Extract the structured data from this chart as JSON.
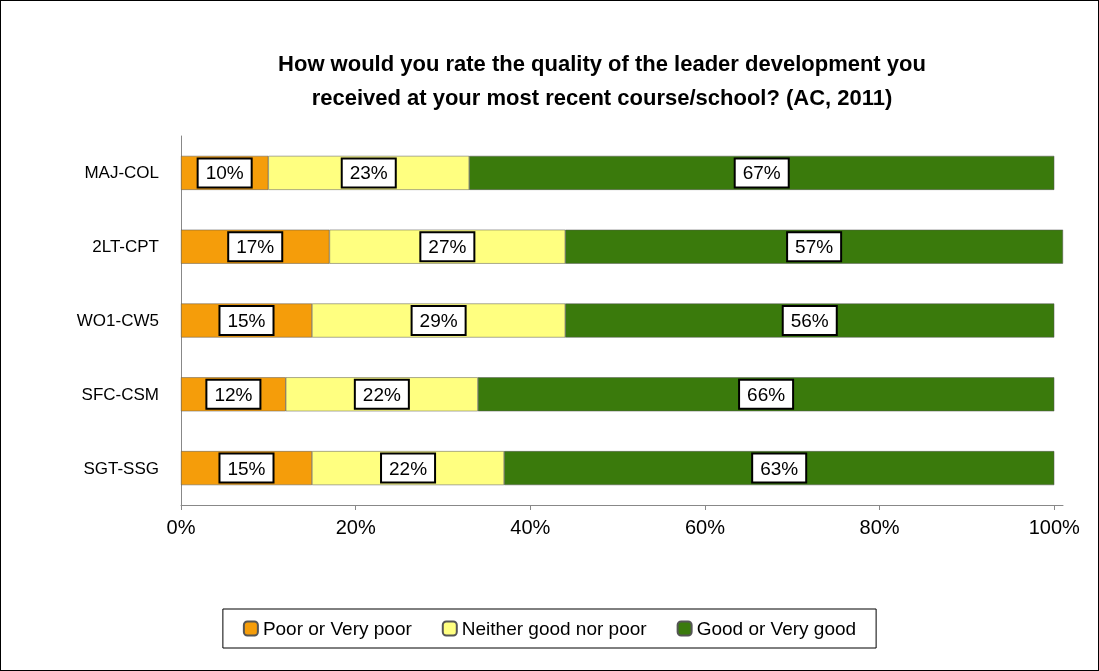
{
  "chart_data": {
    "type": "bar",
    "orientation": "horizontal",
    "stacked": true,
    "title": "How would you rate the quality of the leader development you\nreceived at your most recent course/school? (AC, 2011)",
    "categories": [
      "MAJ-COL",
      "2LT-CPT",
      "WO1-CW5",
      "SFC-CSM",
      "SGT-SSG"
    ],
    "series": [
      {
        "name": "Poor or Very poor",
        "color": "#f59d0a",
        "values": [
          10,
          17,
          15,
          12,
          15
        ],
        "value_labels": [
          "10%",
          "17%",
          "15%",
          "12%",
          "15%"
        ]
      },
      {
        "name": "Neither good nor poor",
        "color": "#ffff80",
        "values": [
          23,
          27,
          29,
          22,
          22
        ],
        "value_labels": [
          "23%",
          "27%",
          "29%",
          "22%",
          "22%"
        ]
      },
      {
        "name": "Good or Very good",
        "color": "#3a7a0c",
        "values": [
          67,
          57,
          56,
          66,
          63
        ],
        "value_labels": [
          "67%",
          "57%",
          "56%",
          "66%",
          "63%"
        ]
      }
    ],
    "xlim": [
      0,
      101
    ],
    "xticks": [
      {
        "value": 0,
        "label": "0%"
      },
      {
        "value": 20,
        "label": "20%"
      },
      {
        "value": 40,
        "label": "40%"
      },
      {
        "value": 60,
        "label": "60%"
      },
      {
        "value": 80,
        "label": "80%"
      },
      {
        "value": 100,
        "label": "100%"
      }
    ],
    "grid": false,
    "legend": "bottom"
  }
}
